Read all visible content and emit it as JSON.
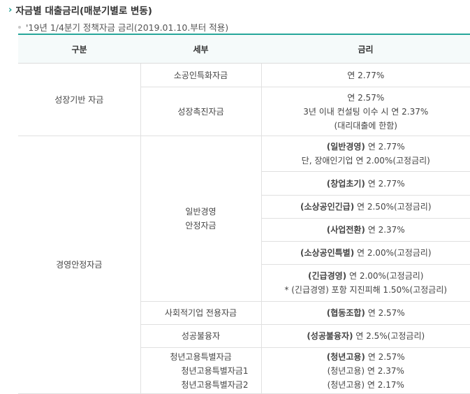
{
  "section": {
    "chevron": "›",
    "title": "자금별 대출금리(매분기별로 변동)"
  },
  "note": {
    "text": "'19년 1/4분기 정책자금 금리(2019.01.10.부터 적용)"
  },
  "table": {
    "headers": {
      "col1": "구분",
      "col2": "세부",
      "col3": "금리"
    },
    "growth": {
      "category": "성장기반 자금",
      "small_biz": {
        "detail": "소공인특화자금",
        "rate": "연 2.77%"
      },
      "promotion": {
        "detail": "성장촉진자금",
        "rate_lines": [
          "연 2.57%",
          "3년 이내 컨설팅 이수 시 연 2.37%",
          "(대리대출에 한함)"
        ]
      }
    },
    "stability": {
      "category": "경영안정자금",
      "general_lines": [
        "일반경영",
        "안정자금"
      ],
      "r_general": {
        "bold": "(일반경영)",
        "text": " 연 2.77%",
        "line2": "단, 장애인기업 연 2.00%(고정금리)"
      },
      "r_startup": {
        "bold": "(창업초기)",
        "text": " 연 2.77%"
      },
      "r_urgent": {
        "bold": "(소상공인긴급)",
        "text": " 연 2.50%(고정금리)"
      },
      "r_transition": {
        "bold": "(사업전환)",
        "text": " 연 2.37%"
      },
      "r_special": {
        "bold": "(소상공인특별)",
        "text": " 연 2.00%(고정금리)"
      },
      "r_emergency": {
        "bold": "(긴급경영)",
        "text": " 연 2.00%(고정금리)",
        "line2": "* (긴급경영) 포항 지진피해 1.50%(고정금리)"
      },
      "social": {
        "detail": "사회적기업 전용자금",
        "bold": "(협동조합)",
        "text": " 연 2.57%"
      },
      "success": {
        "detail": "성공불융자",
        "bold": "(성공불융자)",
        "text": " 연 2.5%(고정금리)"
      },
      "youth": {
        "detail_lines": [
          "청년고용특별자금",
          "청년고용특별자금1",
          "청년고용특별자금2"
        ],
        "rate1_bold": "(청년고용)",
        "rate1_text": " 연 2.57%",
        "rate2": "(청년고용) 연 2.37%",
        "rate3": "(청년고용) 연 2.17%"
      }
    }
  }
}
